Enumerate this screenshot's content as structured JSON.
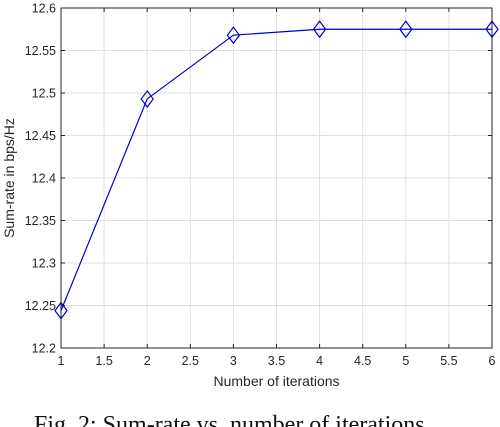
{
  "chart_data": {
    "type": "line",
    "title": "",
    "xlabel": "Number of iterations",
    "ylabel": "Sum-rate in bps/Hz",
    "xlim": [
      1,
      6
    ],
    "ylim": [
      12.2,
      12.6
    ],
    "xticks": [
      "1",
      "1.5",
      "2",
      "2.5",
      "3",
      "3.5",
      "4",
      "4.5",
      "5",
      "5.5",
      "6"
    ],
    "yticks": [
      "12.2",
      "12.25",
      "12.3",
      "12.35",
      "12.4",
      "12.45",
      "12.5",
      "12.55",
      "12.6"
    ],
    "grid": true,
    "series": [
      {
        "x": [
          1,
          2,
          3,
          4,
          5,
          6
        ],
        "y": [
          12.244,
          12.493,
          12.568,
          12.575,
          12.575,
          12.575
        ],
        "color": "#0000cc",
        "marker": "diamond"
      }
    ]
  },
  "caption": "Fig. 2: Sum-rate vs. number of iterations"
}
